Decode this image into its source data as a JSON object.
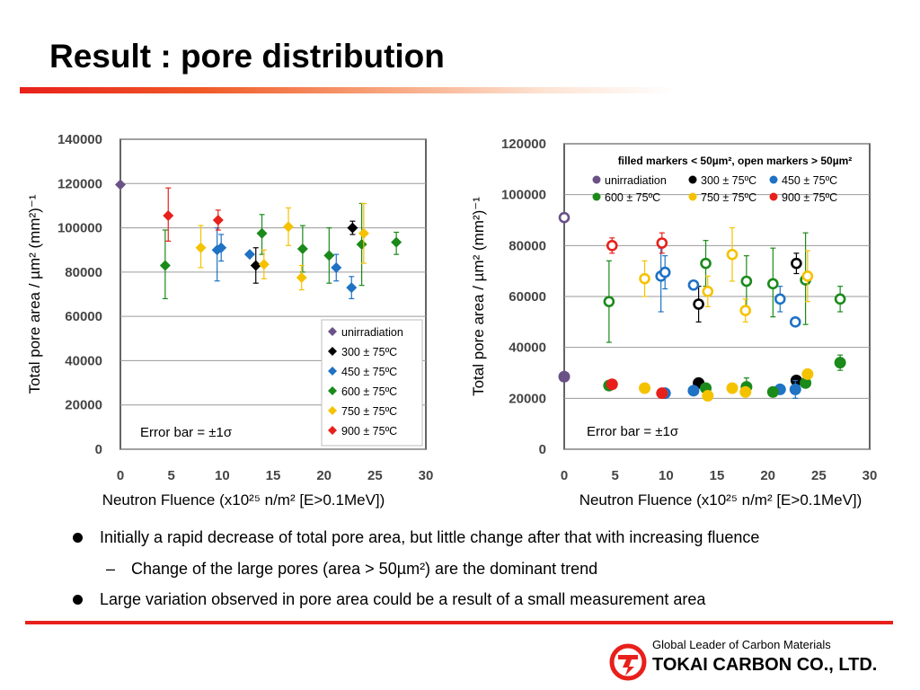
{
  "title": "Result : pore distribution",
  "bullets": {
    "b1": "Initially a rapid decrease of total pore area, but little change after that with increasing fluence",
    "b1_sub_dash": "–",
    "b1_sub": "Change of the large pores (area > 50µm²) are the dominant trend",
    "b2": "Large variation observed in pore area could be a result of a small measurement area"
  },
  "footer": {
    "tagline": "Global Leader of Carbon Materials",
    "company": "TOKAI CARBON CO., LTD.",
    "logo_icon": "tokai-carbon-logo",
    "accent_color": "#e8201b"
  },
  "chart_data": [
    {
      "type": "scatter",
      "xlabel": "Neutron Fluence (x10²⁵ n/m² [E>0.1MeV])",
      "ylabel": "Total pore area / µm² (mm²)⁻¹",
      "xlim": [
        0,
        30
      ],
      "ylim": [
        0,
        140000
      ],
      "xticks": [
        "0",
        "5",
        "10",
        "15",
        "20",
        "25",
        "30"
      ],
      "yticks": [
        "0",
        "20000",
        "40000",
        "60000",
        "80000",
        "100000",
        "120000",
        "140000"
      ],
      "grid": "horizontal",
      "marker": "diamond",
      "legend_position": "bottom-right",
      "note": "Error bar = ±1σ",
      "series": [
        {
          "name": "unirradiation",
          "color": "#6a5186",
          "points": [
            {
              "x": 0,
              "y": 119500
            }
          ]
        },
        {
          "name": "300 ± 75ºC",
          "color": "#000000",
          "points": [
            {
              "x": 13.3,
              "y": 83000,
              "lo": 75000,
              "hi": 91000
            },
            {
              "x": 22.8,
              "y": 100000,
              "lo": 97000,
              "hi": 103000
            }
          ]
        },
        {
          "name": "450 ± 75ºC",
          "color": "#1f72c4",
          "points": [
            {
              "x": 9.5,
              "y": 90000,
              "lo": 76000,
              "hi": 100000
            },
            {
              "x": 9.9,
              "y": 91000,
              "lo": 85000,
              "hi": 97000
            },
            {
              "x": 12.7,
              "y": 88000
            },
            {
              "x": 21.2,
              "y": 82000,
              "lo": 76000,
              "hi": 88000
            },
            {
              "x": 22.7,
              "y": 73000,
              "lo": 68000,
              "hi": 78000
            }
          ]
        },
        {
          "name": "600 ± 75ºC",
          "color": "#1a8a1a",
          "points": [
            {
              "x": 4.4,
              "y": 83000,
              "lo": 68000,
              "hi": 99000
            },
            {
              "x": 13.9,
              "y": 97500,
              "lo": 88000,
              "hi": 106000
            },
            {
              "x": 17.9,
              "y": 90500,
              "lo": 80000,
              "hi": 101000
            },
            {
              "x": 20.5,
              "y": 87500,
              "lo": 75000,
              "hi": 100000
            },
            {
              "x": 23.7,
              "y": 92500,
              "lo": 74000,
              "hi": 111000
            },
            {
              "x": 27.1,
              "y": 93500,
              "lo": 88000,
              "hi": 98000
            }
          ]
        },
        {
          "name": "750 ± 75ºC",
          "color": "#f5c200",
          "points": [
            {
              "x": 7.9,
              "y": 91000,
              "lo": 82000,
              "hi": 101000
            },
            {
              "x": 14.1,
              "y": 83500,
              "lo": 77000,
              "hi": 90000
            },
            {
              "x": 16.5,
              "y": 100500,
              "lo": 92000,
              "hi": 109000
            },
            {
              "x": 17.8,
              "y": 77500,
              "lo": 72000,
              "hi": 83000
            },
            {
              "x": 23.9,
              "y": 97500,
              "lo": 84000,
              "hi": 111000
            }
          ]
        },
        {
          "name": "900 ± 75ºC",
          "color": "#e8201b",
          "points": [
            {
              "x": 4.7,
              "y": 105500,
              "lo": 94000,
              "hi": 118000
            },
            {
              "x": 9.6,
              "y": 103500,
              "lo": 99000,
              "hi": 108000
            }
          ]
        }
      ]
    },
    {
      "type": "scatter",
      "xlabel": "Neutron Fluence (x10²⁵ n/m² [E>0.1MeV])",
      "ylabel": "Total pore area / µm² (mm²)⁻¹",
      "xlim": [
        0,
        30
      ],
      "ylim": [
        0,
        120000
      ],
      "xticks": [
        "0",
        "5",
        "10",
        "15",
        "20",
        "25",
        "30"
      ],
      "yticks": [
        "0",
        "20000",
        "40000",
        "60000",
        "80000",
        "100000",
        "120000"
      ],
      "grid": "horizontal",
      "marker": "circle",
      "legend_position": "top",
      "legend_title": "filled markers < 50µm², open markers > 50µm²",
      "note": "Error bar = ±1σ",
      "series": [
        {
          "name": "unirradiation",
          "color": "#6a5186",
          "filled": [
            {
              "x": 0,
              "y": 28500
            }
          ],
          "open": [
            {
              "x": 0,
              "y": 91000
            }
          ]
        },
        {
          "name": "300 ± 75ºC",
          "color": "#000000",
          "filled": [
            {
              "x": 13.2,
              "y": 26000
            },
            {
              "x": 22.8,
              "y": 27000
            }
          ],
          "open": [
            {
              "x": 13.2,
              "y": 57000,
              "lo": 50000,
              "hi": 64000
            },
            {
              "x": 22.8,
              "y": 73000,
              "lo": 69000,
              "hi": 77000
            }
          ]
        },
        {
          "name": "450 ± 75ºC",
          "color": "#1f72c4",
          "filled": [
            {
              "x": 9.9,
              "y": 22000
            },
            {
              "x": 12.7,
              "y": 23000
            },
            {
              "x": 21.2,
              "y": 23500
            },
            {
              "x": 22.7,
              "y": 23500,
              "lo": 20000,
              "hi": 27000
            }
          ],
          "open": [
            {
              "x": 9.5,
              "y": 68000,
              "lo": 54000,
              "hi": 79000
            },
            {
              "x": 9.9,
              "y": 69500,
              "lo": 63000,
              "hi": 76000
            },
            {
              "x": 12.7,
              "y": 64500
            },
            {
              "x": 21.2,
              "y": 59000,
              "lo": 54000,
              "hi": 64000
            },
            {
              "x": 22.7,
              "y": 50000
            }
          ]
        },
        {
          "name": "600 ± 75ºC",
          "color": "#1a8a1a",
          "filled": [
            {
              "x": 4.4,
              "y": 25000
            },
            {
              "x": 13.9,
              "y": 24000
            },
            {
              "x": 17.9,
              "y": 24500,
              "lo": 21000,
              "hi": 28000
            },
            {
              "x": 20.5,
              "y": 22500
            },
            {
              "x": 23.7,
              "y": 26000
            },
            {
              "x": 27.1,
              "y": 34000,
              "lo": 31000,
              "hi": 37000
            }
          ],
          "open": [
            {
              "x": 4.4,
              "y": 58000,
              "lo": 42000,
              "hi": 74000
            },
            {
              "x": 13.9,
              "y": 73000,
              "lo": 64000,
              "hi": 82000
            },
            {
              "x": 17.9,
              "y": 66000,
              "lo": 56000,
              "hi": 76000
            },
            {
              "x": 20.5,
              "y": 65000,
              "lo": 52000,
              "hi": 79000
            },
            {
              "x": 23.7,
              "y": 66500,
              "lo": 49000,
              "hi": 85000
            },
            {
              "x": 27.1,
              "y": 59000,
              "lo": 54000,
              "hi": 64000
            }
          ]
        },
        {
          "name": "750 ± 75ºC",
          "color": "#f5c200",
          "filled": [
            {
              "x": 7.9,
              "y": 24000
            },
            {
              "x": 14.1,
              "y": 21000
            },
            {
              "x": 16.5,
              "y": 24000
            },
            {
              "x": 17.8,
              "y": 22500
            },
            {
              "x": 23.9,
              "y": 29500
            }
          ],
          "open": [
            {
              "x": 7.9,
              "y": 67000,
              "lo": 60000,
              "hi": 74000
            },
            {
              "x": 14.1,
              "y": 62000,
              "lo": 56000,
              "hi": 68000
            },
            {
              "x": 16.5,
              "y": 76500,
              "lo": 66000,
              "hi": 87000
            },
            {
              "x": 17.8,
              "y": 54500,
              "lo": 50000,
              "hi": 59000
            },
            {
              "x": 23.9,
              "y": 68000,
              "lo": 58000,
              "hi": 78000
            }
          ]
        },
        {
          "name": "900 ± 75ºC",
          "color": "#e8201b",
          "filled": [
            {
              "x": 4.7,
              "y": 25500
            },
            {
              "x": 9.6,
              "y": 22000
            }
          ],
          "open": [
            {
              "x": 4.7,
              "y": 80000,
              "lo": 77000,
              "hi": 83000
            },
            {
              "x": 9.6,
              "y": 81000,
              "lo": 77000,
              "hi": 85000
            }
          ]
        }
      ]
    }
  ]
}
